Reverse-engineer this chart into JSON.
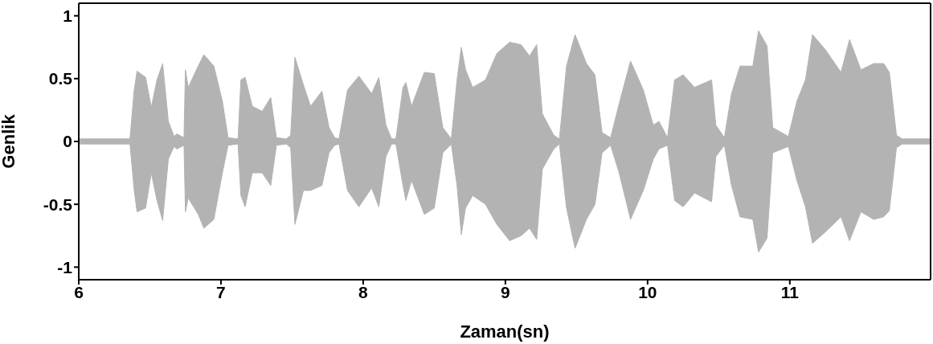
{
  "chart_data": {
    "type": "area",
    "xlabel": "Zaman(sn)",
    "ylabel": "Genlik",
    "x": [
      6.0,
      6.35,
      6.36,
      6.39,
      6.41,
      6.47,
      6.51,
      6.55,
      6.59,
      6.63,
      6.67,
      6.69,
      6.74,
      6.75,
      6.77,
      6.84,
      6.88,
      6.95,
      7.01,
      7.05,
      7.12,
      7.14,
      7.17,
      7.22,
      7.29,
      7.35,
      7.39,
      7.46,
      7.49,
      7.52,
      7.58,
      7.63,
      7.71,
      7.76,
      7.8,
      7.83,
      7.89,
      7.97,
      8.06,
      8.11,
      8.16,
      8.2,
      8.23,
      8.28,
      8.3,
      8.34,
      8.43,
      8.5,
      8.56,
      8.62,
      8.66,
      8.69,
      8.72,
      8.77,
      8.86,
      8.94,
      9.03,
      9.11,
      9.17,
      9.22,
      9.26,
      9.34,
      9.38,
      9.43,
      9.49,
      9.57,
      9.63,
      9.68,
      9.74,
      9.8,
      9.88,
      9.97,
      10.04,
      10.08,
      10.14,
      10.19,
      10.25,
      10.33,
      10.45,
      10.48,
      10.54,
      10.59,
      10.65,
      10.74,
      10.78,
      10.84,
      10.88,
      10.99,
      11.05,
      11.11,
      11.16,
      11.25,
      11.36,
      11.42,
      11.5,
      11.59,
      11.66,
      11.7,
      11.75,
      11.79,
      11.99
    ],
    "series": [
      {
        "color": "#b3b3b3",
        "values": [
          0.02,
          0.02,
          0.02,
          0.41,
          0.56,
          0.51,
          0.27,
          0.49,
          0.62,
          0.16,
          0.04,
          0.06,
          0.03,
          0.57,
          0.43,
          0.6,
          0.69,
          0.6,
          0.32,
          0.03,
          0.02,
          0.49,
          0.51,
          0.28,
          0.24,
          0.35,
          0.03,
          0.02,
          0.05,
          0.67,
          0.45,
          0.28,
          0.4,
          0.11,
          0.03,
          0.02,
          0.41,
          0.52,
          0.38,
          0.51,
          0.13,
          0.02,
          0.02,
          0.43,
          0.47,
          0.28,
          0.55,
          0.54,
          0.11,
          0.02,
          0.49,
          0.75,
          0.57,
          0.43,
          0.49,
          0.7,
          0.79,
          0.77,
          0.68,
          0.77,
          0.22,
          0.05,
          0.02,
          0.6,
          0.85,
          0.62,
          0.53,
          0.07,
          0.03,
          0.3,
          0.64,
          0.41,
          0.13,
          0.16,
          0.03,
          0.49,
          0.53,
          0.43,
          0.49,
          0.13,
          0.03,
          0.38,
          0.6,
          0.6,
          0.88,
          0.76,
          0.11,
          0.04,
          0.32,
          0.49,
          0.85,
          0.73,
          0.55,
          0.81,
          0.57,
          0.62,
          0.62,
          0.55,
          0.05,
          0.02,
          0.02
        ]
      },
      {
        "color": "#b3b3b3",
        "values": [
          -0.02,
          -0.02,
          -0.02,
          -0.39,
          -0.56,
          -0.53,
          -0.25,
          -0.47,
          -0.63,
          -0.14,
          -0.04,
          -0.06,
          -0.03,
          -0.56,
          -0.45,
          -0.58,
          -0.69,
          -0.62,
          -0.25,
          -0.03,
          -0.02,
          -0.43,
          -0.52,
          -0.25,
          -0.25,
          -0.35,
          -0.03,
          -0.02,
          -0.05,
          -0.66,
          -0.39,
          -0.39,
          -0.35,
          -0.09,
          -0.03,
          -0.02,
          -0.39,
          -0.52,
          -0.37,
          -0.52,
          -0.12,
          -0.02,
          -0.02,
          -0.35,
          -0.47,
          -0.31,
          -0.58,
          -0.53,
          -0.09,
          -0.02,
          -0.35,
          -0.74,
          -0.53,
          -0.43,
          -0.5,
          -0.66,
          -0.79,
          -0.75,
          -0.69,
          -0.78,
          -0.22,
          -0.06,
          -0.02,
          -0.53,
          -0.85,
          -0.62,
          -0.5,
          -0.09,
          -0.03,
          -0.25,
          -0.62,
          -0.39,
          -0.14,
          -0.06,
          -0.03,
          -0.47,
          -0.52,
          -0.41,
          -0.48,
          -0.12,
          -0.03,
          -0.35,
          -0.6,
          -0.62,
          -0.88,
          -0.77,
          -0.09,
          -0.04,
          -0.31,
          -0.52,
          -0.81,
          -0.72,
          -0.6,
          -0.79,
          -0.56,
          -0.62,
          -0.6,
          -0.55,
          -0.05,
          -0.02,
          -0.02
        ]
      }
    ],
    "xlim": [
      6,
      11.99
    ],
    "xticks": [
      6,
      7,
      8,
      9,
      10,
      11
    ],
    "ylim": [
      -1.1,
      1.1
    ],
    "yticks": [
      -1,
      -0.5,
      0,
      0.5,
      1
    ],
    "grid": false,
    "legend": false
  }
}
